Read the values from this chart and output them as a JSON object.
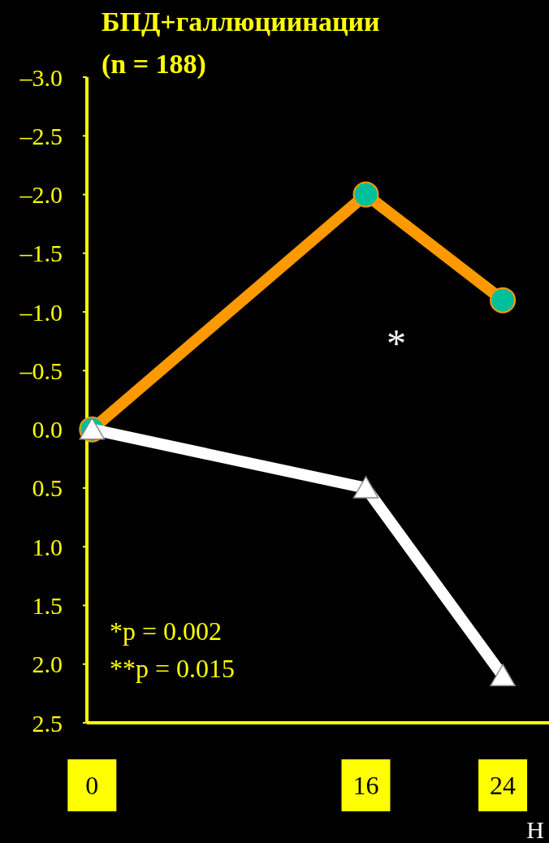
{
  "chart_data": {
    "type": "line",
    "title": "БПД+галлюциинации",
    "subtitle": "(n = 188)",
    "xlabel": "Н",
    "x": [
      0,
      16,
      24
    ],
    "xlim": [
      -0.3,
      26.7
    ],
    "xticks": [
      0,
      16,
      24
    ],
    "ylim": [
      2.5,
      -3.0
    ],
    "yticks": [
      {
        "value": -3.0,
        "label": "–3.0"
      },
      {
        "value": -2.5,
        "label": "–2.5"
      },
      {
        "value": -2.0,
        "label": "–2.0"
      },
      {
        "value": -1.5,
        "label": "–1.5"
      },
      {
        "value": -1.0,
        "label": "–1.0"
      },
      {
        "value": -0.5,
        "label": "–0.5"
      },
      {
        "value": 0,
        "label": "0.0"
      },
      {
        "value": 0.5,
        "label": "0.5"
      },
      {
        "value": 1.0,
        "label": "1.0"
      },
      {
        "value": 1.5,
        "label": "1.5"
      },
      {
        "value": 2.0,
        "label": "2.0"
      },
      {
        "value": 2.5,
        "label": "2.5"
      }
    ],
    "series": [
      {
        "color": "#ff9900",
        "marker": "circle",
        "values": [
          0,
          -2.0,
          -1.1
        ]
      },
      {
        "color": "#ffffff",
        "marker": "triangle",
        "values": [
          0,
          0.5,
          2.1
        ]
      }
    ],
    "annotations": [
      "*",
      "*p = 0.002",
      "**p = 0.015"
    ],
    "grid": false
  }
}
